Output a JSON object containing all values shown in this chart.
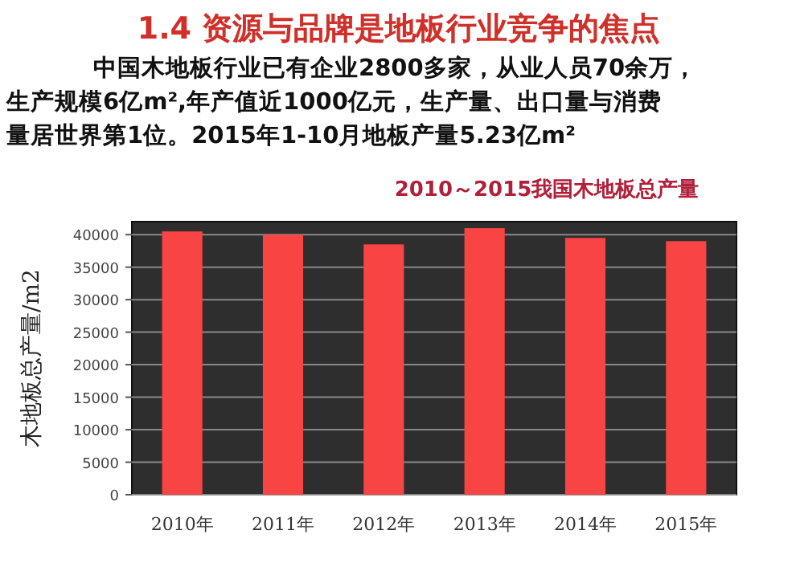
{
  "chart_data": {
    "type": "bar",
    "title": "1.4 资源与品牌是地板行业竞争的焦点",
    "annotations": [
      "中国木地板行业已有企业2800多家，从业人员70余万，",
      "生产规模6亿m²,年产值近1000亿元，生产量、出口量与消费",
      "量居世界第1位。2015年1-10月地板产量5.23亿m²"
    ],
    "subtitle": "2010～2015我国木地板总产量",
    "ylabel": "木地板总产量/m2",
    "categories": [
      "2010年",
      "2011年",
      "2012年",
      "2013年",
      "2014年",
      "2015年"
    ],
    "series": [
      {
        "color": "#f94444",
        "values": [
          40500,
          40000,
          38500,
          41000,
          39500,
          39000
        ]
      }
    ],
    "ylim": [
      0,
      42000
    ],
    "yticks": [
      0,
      5000,
      10000,
      15000,
      20000,
      25000,
      30000,
      35000,
      40000
    ],
    "grid": "y"
  }
}
